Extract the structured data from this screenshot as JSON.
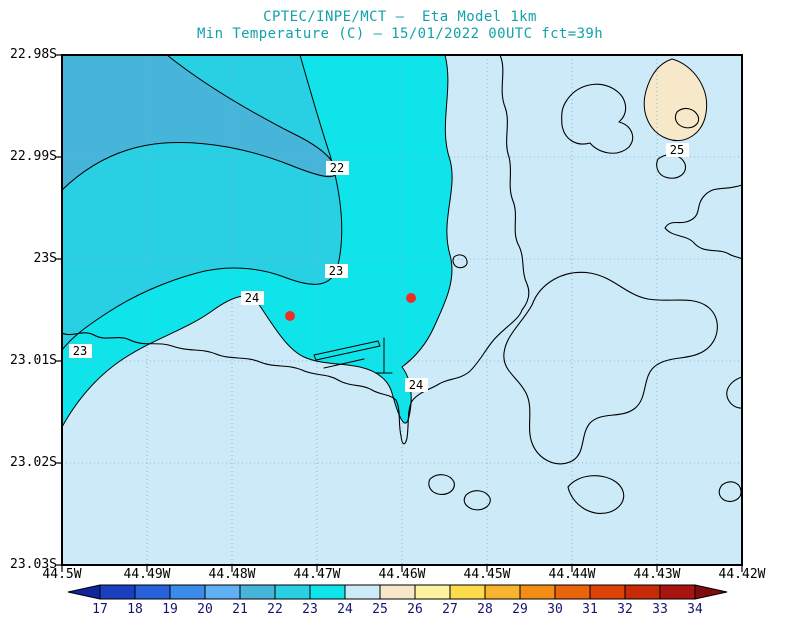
{
  "title": {
    "line1": "CPTEC/INPE/MCT —  Eta Model 1km",
    "line2": "Min Temperature (C) — 15/01/2022 00UTC fct=39h",
    "color": "#12a2aa"
  },
  "axes": {
    "y_labels": [
      "22.98S",
      "22.99S",
      "23S",
      "23.01S",
      "23.02S",
      "23.03S"
    ],
    "x_labels": [
      "44.5W",
      "44.49W",
      "44.48W",
      "44.47W",
      "44.46W",
      "44.45W",
      "44.44W",
      "44.43W",
      "44.42W"
    ]
  },
  "contour_labels": {
    "l22": "22",
    "l23a": "23",
    "l23b": "23",
    "l24a": "24",
    "l24b": "24",
    "l25": "25"
  },
  "markers": {
    "count": 2,
    "color": "#ee2e24"
  },
  "colorbar": {
    "ticks": [
      "17",
      "18",
      "19",
      "20",
      "21",
      "22",
      "23",
      "24",
      "25",
      "26",
      "27",
      "28",
      "29",
      "30",
      "31",
      "32",
      "33",
      "34"
    ],
    "colors": [
      "#10249e",
      "#1a3ec0",
      "#2762d8",
      "#3a8ce8",
      "#5fb0f2",
      "#46b5d9",
      "#29cfe2",
      "#0ee4ea",
      "#cdeaf9",
      "#f6e8c8",
      "#fdf3a0",
      "#fcdc4c",
      "#f7b42c",
      "#f28d16",
      "#e8650c",
      "#dc4206",
      "#c62a08",
      "#a81410",
      "#7e0c10"
    ],
    "tick_color": "#14146e"
  },
  "map_data": {
    "type": "contour-map",
    "field": "Min Temperature (C)",
    "model": "Eta Model 1km",
    "run": "15/01/2022 00UTC",
    "forecast": "fct=39h",
    "contour_levels_visible": [
      22,
      23,
      24,
      25
    ],
    "colorbar_min": 17,
    "colorbar_max": 34,
    "lat_ticks": [
      "22.98S",
      "22.99S",
      "23S",
      "23.01S",
      "23.02S",
      "23.03S"
    ],
    "lon_ticks": [
      "44.5W",
      "44.49W",
      "44.48W",
      "44.47W",
      "44.46W",
      "44.45W",
      "44.44W",
      "44.43W",
      "44.42W"
    ],
    "station_markers": 2,
    "region_colors": {
      "21-22": "#46b5d9",
      "22-23": "#29cfe2",
      "23-24": "#0ee4ea",
      "24-25": "#cdeaf9",
      "25-26": "#f6e8c8"
    }
  }
}
